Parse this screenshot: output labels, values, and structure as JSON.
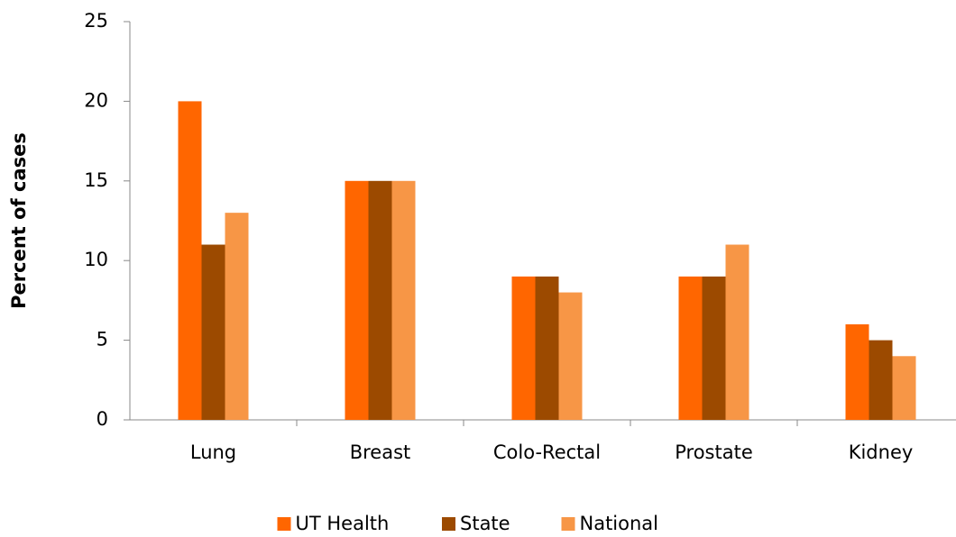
{
  "chart_data": {
    "type": "bar",
    "ylabel": "Percent of cases",
    "categories": [
      "Lung",
      "Breast",
      "Colo-Rectal",
      "Prostate",
      "Kidney"
    ],
    "series": [
      {
        "name": "UT Health",
        "color": "#ff6600",
        "values": [
          20,
          15,
          9,
          9,
          6
        ]
      },
      {
        "name": "State",
        "color": "#9c4a00",
        "values": [
          11,
          15,
          9,
          9,
          5
        ]
      },
      {
        "name": "National",
        "color": "#f79646",
        "values": [
          13,
          15,
          8,
          11,
          4
        ]
      }
    ],
    "ylim": [
      0,
      25
    ],
    "yticks": [
      0,
      5,
      10,
      15,
      20,
      25
    ],
    "grid": false,
    "legend": "bottom"
  }
}
